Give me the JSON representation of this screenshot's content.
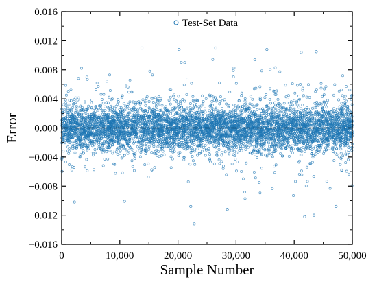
{
  "chart_data": {
    "type": "scatter",
    "xlabel": "Sample Number",
    "ylabel": "Error",
    "xlim": [
      0,
      50000
    ],
    "ylim": [
      -0.016,
      0.016
    ],
    "x_ticks": [
      0,
      10000,
      20000,
      30000,
      40000,
      50000
    ],
    "x_tick_labels": [
      "0",
      "10,000",
      "20,000",
      "30,000",
      "40,000",
      "50,000"
    ],
    "y_ticks": [
      0.016,
      0.012,
      0.008,
      0.004,
      0.0,
      -0.004,
      -0.008,
      -0.012,
      -0.016
    ],
    "y_tick_labels": [
      "0.016",
      "0.012",
      "0.008",
      "0.004",
      "0.000",
      "−0.004",
      "−0.008",
      "−0.012",
      "−0.016"
    ],
    "legend": {
      "position": "top-center",
      "entries": [
        "Test-Set Data"
      ]
    },
    "grid": false,
    "reference_line": {
      "y": 0.0,
      "style": "dash-dot",
      "color": "#000000"
    },
    "series": [
      {
        "name": "Test-Set Data",
        "marker": "hollow-circle",
        "color": "#1f77b4",
        "n_points": 50000,
        "x_range": [
          1,
          50000
        ],
        "error_mean": 0.0,
        "error_std_approx": 0.0018,
        "error_range_approx": [
          -0.0132,
          0.0112
        ],
        "outliers": [
          {
            "x": 13800,
            "y": 0.011
          },
          {
            "x": 20200,
            "y": 0.0108
          },
          {
            "x": 26500,
            "y": 0.011
          },
          {
            "x": 35300,
            "y": 0.0108
          },
          {
            "x": 41200,
            "y": 0.0104
          },
          {
            "x": 43800,
            "y": 0.0105
          },
          {
            "x": 2200,
            "y": -0.0102
          },
          {
            "x": 10800,
            "y": -0.0101
          },
          {
            "x": 22200,
            "y": -0.0108
          },
          {
            "x": 22800,
            "y": -0.0132
          },
          {
            "x": 28500,
            "y": -0.0112
          },
          {
            "x": 41800,
            "y": -0.0122
          },
          {
            "x": 43400,
            "y": -0.012
          },
          {
            "x": 47200,
            "y": -0.0108
          }
        ]
      }
    ]
  }
}
